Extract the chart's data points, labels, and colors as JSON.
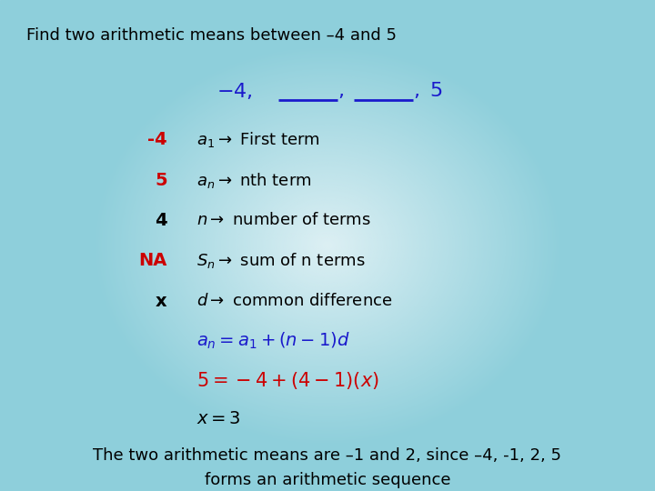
{
  "title": "Find two arithmetic means between –4 and 5",
  "title_color": "#000000",
  "title_fontsize": 13,
  "seq_color": "#1a1acc",
  "seq_fontsize": 15,
  "rows": [
    {
      "left": "-4",
      "left_color": "#cc0000",
      "right": "$a_1 \\rightarrow$ First term",
      "right_color": "#000000"
    },
    {
      "left": "5",
      "left_color": "#cc0000",
      "right": "$a_n \\rightarrow$ nth term",
      "right_color": "#000000"
    },
    {
      "left": "4",
      "left_color": "#000000",
      "right": "$n \\rightarrow$ number of terms",
      "right_color": "#000000"
    },
    {
      "left": "NA",
      "left_color": "#cc0000",
      "right": "$S_n \\rightarrow$ sum of n terms",
      "right_color": "#000000"
    },
    {
      "left": "x",
      "left_color": "#000000",
      "right": "$d \\rightarrow$ common difference",
      "right_color": "#000000"
    }
  ],
  "formula1_color": "#1a1acc",
  "formula2_color": "#cc0000",
  "formula3_color": "#000000",
  "footer1": "The two arithmetic means are –1 and 2, since –4, -1, 2, 5",
  "footer2": "forms an arithmetic sequence",
  "footer_color": "#000000",
  "footer_fontsize": 13,
  "row_fontsize": 13,
  "formula_fontsize": 14,
  "bg_teal": "#8ecfdb",
  "bg_light": "#ddf0f4"
}
